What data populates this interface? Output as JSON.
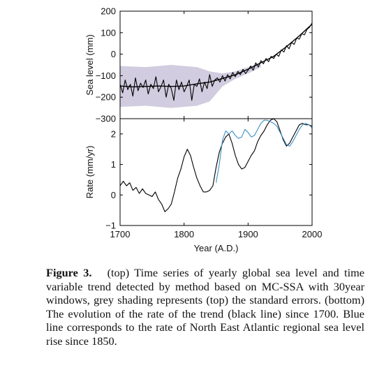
{
  "chart_data": [
    {
      "type": "line",
      "panel": "top",
      "ylabel": "Sea level (mm)",
      "xlim": [
        1700,
        2000
      ],
      "ylim": [
        -300,
        200
      ],
      "yticks": [
        -300,
        -200,
        -100,
        0,
        100,
        200
      ],
      "ytick_labels": [
        "−300",
        "−200",
        "−100",
        "0",
        "100",
        "200"
      ],
      "grid": false,
      "series": [
        {
          "role": "trend",
          "color": "#000000",
          "x": [
            1700,
            1720,
            1740,
            1760,
            1780,
            1800,
            1820,
            1840,
            1860,
            1880,
            1900,
            1920,
            1940,
            1960,
            1980,
            2000
          ],
          "y": [
            -148,
            -152,
            -150,
            -148,
            -150,
            -148,
            -138,
            -130,
            -113,
            -96,
            -70,
            -40,
            -10,
            35,
            85,
            140
          ]
        },
        {
          "role": "yearly",
          "color": "#000000",
          "x": [
            1700,
            1704,
            1708,
            1712,
            1716,
            1720,
            1724,
            1728,
            1732,
            1736,
            1740,
            1744,
            1748,
            1752,
            1756,
            1760,
            1764,
            1768,
            1772,
            1776,
            1780,
            1784,
            1788,
            1792,
            1796,
            1800,
            1804,
            1808,
            1812,
            1816,
            1820,
            1824,
            1828,
            1832,
            1836,
            1840,
            1844,
            1848,
            1852,
            1856,
            1860,
            1864,
            1868,
            1872,
            1876,
            1880,
            1884,
            1888,
            1892,
            1896,
            1900,
            1904,
            1908,
            1912,
            1916,
            1920,
            1924,
            1928,
            1932,
            1936,
            1940,
            1944,
            1948,
            1952,
            1956,
            1960,
            1964,
            1968,
            1972,
            1976,
            1980,
            1984,
            1988,
            1992,
            1996,
            2000
          ],
          "y": [
            -140,
            -180,
            -120,
            -165,
            -140,
            -195,
            -110,
            -170,
            -135,
            -155,
            -120,
            -185,
            -140,
            -160,
            -105,
            -175,
            -150,
            -120,
            -200,
            -140,
            -160,
            -215,
            -120,
            -165,
            -130,
            -175,
            -150,
            -120,
            -215,
            -140,
            -150,
            -115,
            -175,
            -130,
            -160,
            -95,
            -150,
            -120,
            -110,
            -130,
            -100,
            -125,
            -95,
            -115,
            -85,
            -105,
            -80,
            -95,
            -70,
            -90,
            -75,
            -55,
            -75,
            -40,
            -60,
            -30,
            -45,
            -20,
            -35,
            -10,
            -20,
            0,
            -10,
            20,
            10,
            40,
            25,
            55,
            45,
            75,
            70,
            95,
            90,
            115,
            125,
            145
          ]
        },
        {
          "role": "standard-error",
          "color": "#c9c3d9",
          "x": [
            1700,
            1740,
            1780,
            1820,
            1840,
            1860,
            1880,
            1900,
            1920
          ],
          "upper": [
            -55,
            -60,
            -50,
            -60,
            -80,
            -90,
            -80,
            -60,
            -40
          ],
          "lower": [
            -245,
            -240,
            -250,
            -240,
            -220,
            -150,
            -115,
            -90,
            -60
          ]
        }
      ]
    },
    {
      "type": "line",
      "panel": "bottom",
      "xlabel": "Year (A.D.)",
      "ylabel": "Rate (mm/yr)",
      "xlim": [
        1700,
        2000
      ],
      "ylim": [
        -1,
        2.5
      ],
      "xticks": [
        1700,
        1800,
        1900,
        2000
      ],
      "yticks": [
        -1,
        0,
        1,
        2
      ],
      "ytick_labels": [
        "−1",
        "0",
        "1",
        "2"
      ],
      "grid": false,
      "series": [
        {
          "role": "trend-rate",
          "color": "#000000",
          "x": [
            1700,
            1705,
            1710,
            1715,
            1720,
            1725,
            1730,
            1735,
            1740,
            1745,
            1750,
            1755,
            1760,
            1765,
            1770,
            1775,
            1780,
            1785,
            1790,
            1795,
            1800,
            1805,
            1810,
            1815,
            1820,
            1825,
            1830,
            1835,
            1840,
            1845,
            1850,
            1855,
            1860,
            1865,
            1870,
            1875,
            1880,
            1885,
            1890,
            1895,
            1900,
            1905,
            1910,
            1915,
            1920,
            1925,
            1930,
            1935,
            1940,
            1945,
            1950,
            1955,
            1960,
            1965,
            1970,
            1975,
            1980,
            1985,
            1990,
            1995,
            2000
          ],
          "y": [
            0.3,
            0.45,
            0.3,
            0.4,
            0.15,
            0.25,
            0.05,
            0.2,
            0.05,
            0.0,
            -0.05,
            0.1,
            -0.15,
            -0.3,
            -0.55,
            -0.45,
            -0.3,
            0.1,
            0.55,
            0.85,
            1.25,
            1.5,
            1.3,
            0.9,
            0.55,
            0.3,
            0.1,
            0.1,
            0.15,
            0.3,
            0.9,
            1.4,
            1.7,
            1.9,
            2.0,
            1.7,
            1.3,
            1.0,
            0.85,
            0.9,
            1.1,
            1.3,
            1.45,
            1.75,
            1.95,
            2.1,
            2.3,
            2.45,
            2.5,
            2.4,
            2.1,
            1.8,
            1.6,
            1.7,
            1.9,
            2.1,
            2.3,
            2.35,
            2.3,
            2.3,
            2.25
          ]
        },
        {
          "role": "north-east-atlantic",
          "color": "#3d8fc4",
          "x": [
            1850,
            1855,
            1860,
            1865,
            1870,
            1875,
            1880,
            1885,
            1890,
            1895,
            1900,
            1905,
            1910,
            1915,
            1920,
            1925,
            1930,
            1935,
            1940,
            1945,
            1950,
            1955,
            1960,
            1965,
            1970,
            1975,
            1980,
            1985,
            1990,
            1995,
            2000
          ],
          "y": [
            0.4,
            1.0,
            1.8,
            2.1,
            2.0,
            2.1,
            1.95,
            1.85,
            1.9,
            2.15,
            2.05,
            1.9,
            1.95,
            2.15,
            2.35,
            2.45,
            2.45,
            2.4,
            2.35,
            2.25,
            2.05,
            1.85,
            1.65,
            1.6,
            1.75,
            1.95,
            2.15,
            2.3,
            2.35,
            2.3,
            2.2
          ]
        }
      ]
    }
  ],
  "caption": {
    "label": "Figure 3.",
    "text": "(top) Time series of yearly global sea level and time variable trend detected by method based on MC-SSA with 30year windows, grey shading represents (top) the standard errors. (bottom) The evolution of the rate of the trend (black line) since 1700. Blue line corresponds to the rate of North East Atlantic regional sea level rise since 1850."
  }
}
